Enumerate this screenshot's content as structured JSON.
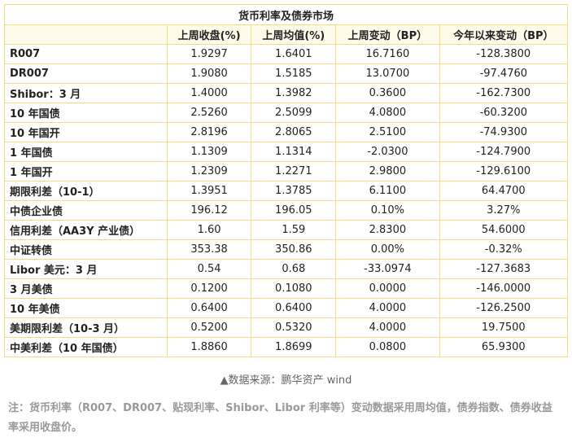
{
  "table": {
    "title": "货币利率及债券市场",
    "header": [
      "",
      "上周收盘(%)",
      "上周均值(%)",
      "上周变动（BP）",
      "今年以来变动（BP）"
    ],
    "rows": [
      [
        "R007",
        "1.9297",
        "1.6401",
        "16.7160",
        "-128.3800"
      ],
      [
        "DR007",
        "1.9080",
        "1.5185",
        "13.0700",
        "-97.4760"
      ],
      [
        "Shibor：3 月",
        "1.4000",
        "1.3982",
        "0.3600",
        "-162.7300"
      ],
      [
        "10 年国债",
        "2.5260",
        "2.5099",
        "4.0800",
        "-60.3200"
      ],
      [
        "10 年国开",
        "2.8196",
        "2.8065",
        "2.5100",
        "-74.9300"
      ],
      [
        "1 年国债",
        "1.1309",
        "1.1314",
        "-2.0300",
        "-124.7900"
      ],
      [
        "1 年国开",
        "1.2309",
        "1.2271",
        "2.9800",
        "-129.6100"
      ],
      [
        "期限利差（10-1）",
        "1.3951",
        "1.3785",
        "6.1100",
        "64.4700"
      ],
      [
        "中债企业债",
        "196.12",
        "196.05",
        "0.10%",
        "3.27%"
      ],
      [
        "信用利差（AA3Y 产业债）",
        "1.60",
        "1.59",
        "2.8300",
        "54.6000"
      ],
      [
        "中证转债",
        "353.38",
        "350.86",
        "0.00%",
        "-0.32%"
      ],
      [
        "Libor 美元：3 月",
        "0.54",
        "0.68",
        "-33.0974",
        "-127.3683"
      ],
      [
        "3 月美债",
        "0.1200",
        "0.1080",
        "0.0000",
        "-146.0000"
      ],
      [
        "10 年美债",
        "0.6400",
        "0.6400",
        "4.0000",
        "-126.2500"
      ],
      [
        "美期限利差（10-3 月）",
        "0.5200",
        "0.5320",
        "4.0000",
        "19.7500"
      ],
      [
        "中美利差（10 年国债）",
        "1.8860",
        "1.8699",
        "0.0800",
        "65.9300"
      ]
    ],
    "source": "▲数据来源：鹏华资产  wind",
    "note": "注：货币利率（R007、DR007、贴现利率、Shibor、Libor 利率等）变动数据采用周均值，债券指数、债券收益率采用收盘价。"
  }
}
